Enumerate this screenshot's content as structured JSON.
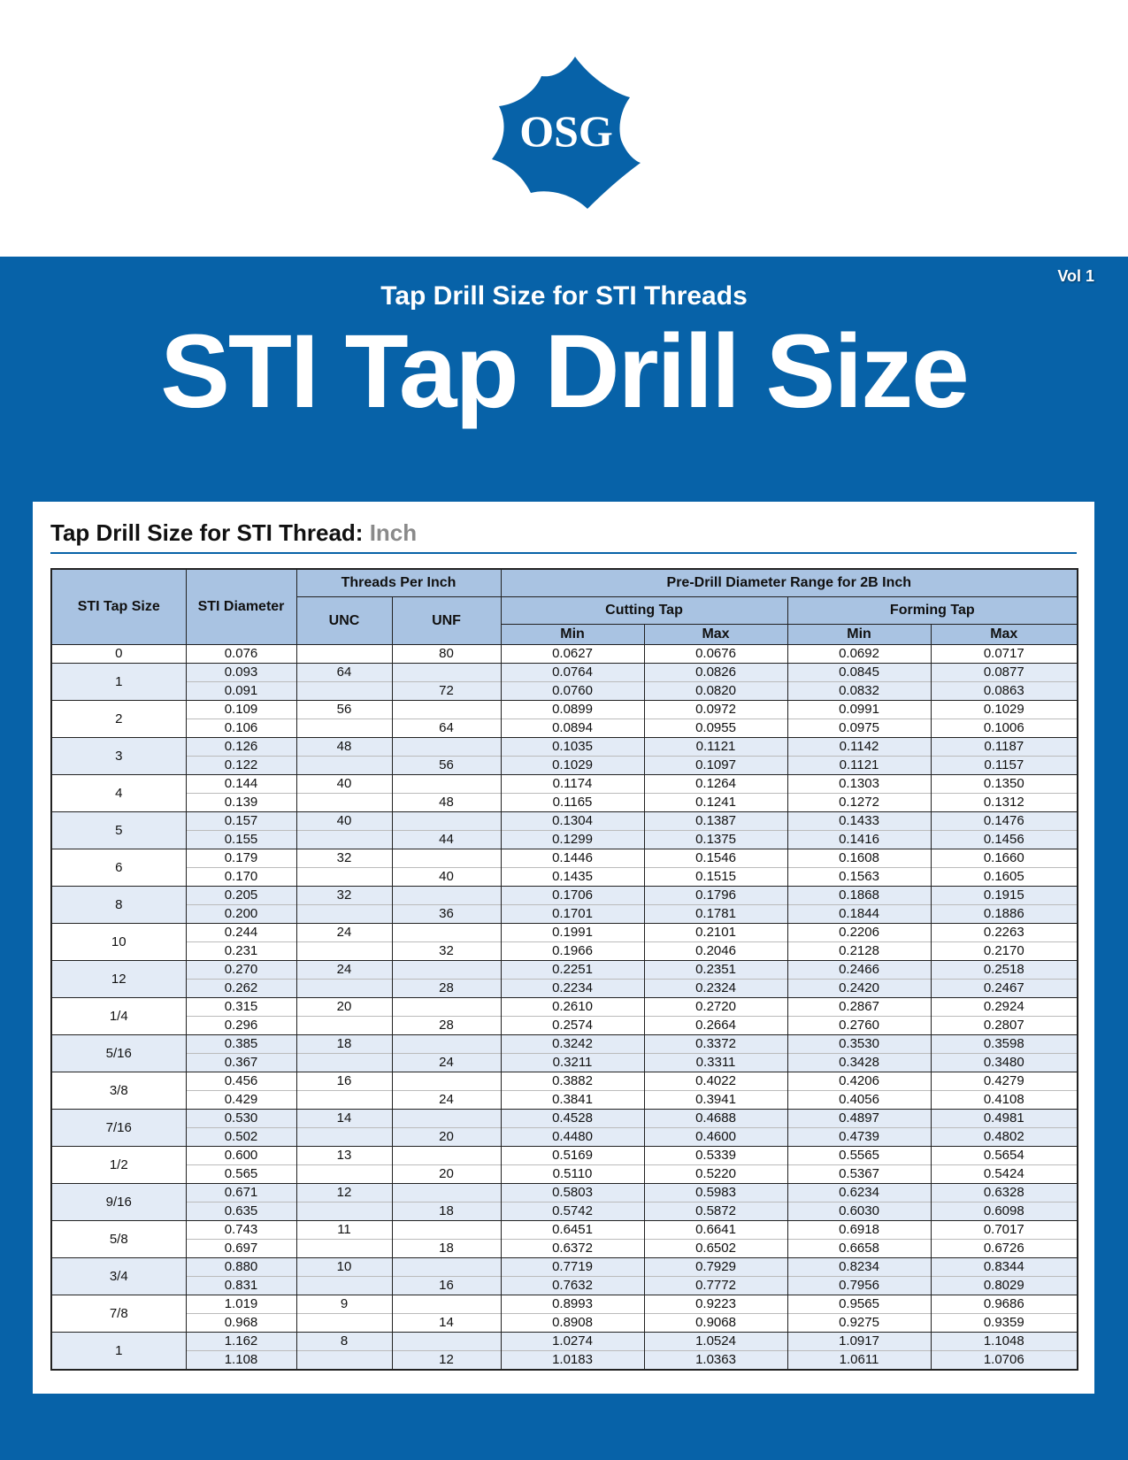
{
  "logo": {
    "text": "OSG",
    "color": "#0762a8"
  },
  "banner": {
    "volume": "Vol 1",
    "subtitle": "Tap Drill Size for STI Threads",
    "title": "STI Tap Drill Size",
    "color": "#0762a8"
  },
  "section": {
    "title": "Tap Drill Size for STI Thread:",
    "unit": "Inch"
  },
  "table": {
    "headers": {
      "tap_size": "STI Tap Size",
      "diameter": "STI Diameter",
      "tpi": "Threads Per Inch",
      "unc": "UNC",
      "unf": "UNF",
      "predrill": "Pre-Drill Diameter Range for 2B Inch",
      "cutting": "Cutting Tap",
      "forming": "Forming Tap",
      "min": "Min",
      "max": "Max"
    },
    "groups": [
      {
        "size": "0",
        "rows": [
          {
            "dia": "0.076",
            "unc": "",
            "unf": "80",
            "cmin": "0.0627",
            "cmax": "0.0676",
            "fmin": "0.0692",
            "fmax": "0.0717"
          }
        ]
      },
      {
        "size": "1",
        "rows": [
          {
            "dia": "0.093",
            "unc": "64",
            "unf": "",
            "cmin": "0.0764",
            "cmax": "0.0826",
            "fmin": "0.0845",
            "fmax": "0.0877"
          },
          {
            "dia": "0.091",
            "unc": "",
            "unf": "72",
            "cmin": "0.0760",
            "cmax": "0.0820",
            "fmin": "0.0832",
            "fmax": "0.0863"
          }
        ]
      },
      {
        "size": "2",
        "rows": [
          {
            "dia": "0.109",
            "unc": "56",
            "unf": "",
            "cmin": "0.0899",
            "cmax": "0.0972",
            "fmin": "0.0991",
            "fmax": "0.1029"
          },
          {
            "dia": "0.106",
            "unc": "",
            "unf": "64",
            "cmin": "0.0894",
            "cmax": "0.0955",
            "fmin": "0.0975",
            "fmax": "0.1006"
          }
        ]
      },
      {
        "size": "3",
        "rows": [
          {
            "dia": "0.126",
            "unc": "48",
            "unf": "",
            "cmin": "0.1035",
            "cmax": "0.1121",
            "fmin": "0.1142",
            "fmax": "0.1187"
          },
          {
            "dia": "0.122",
            "unc": "",
            "unf": "56",
            "cmin": "0.1029",
            "cmax": "0.1097",
            "fmin": "0.1121",
            "fmax": "0.1157"
          }
        ]
      },
      {
        "size": "4",
        "rows": [
          {
            "dia": "0.144",
            "unc": "40",
            "unf": "",
            "cmin": "0.1174",
            "cmax": "0.1264",
            "fmin": "0.1303",
            "fmax": "0.1350"
          },
          {
            "dia": "0.139",
            "unc": "",
            "unf": "48",
            "cmin": "0.1165",
            "cmax": "0.1241",
            "fmin": "0.1272",
            "fmax": "0.1312"
          }
        ]
      },
      {
        "size": "5",
        "rows": [
          {
            "dia": "0.157",
            "unc": "40",
            "unf": "",
            "cmin": "0.1304",
            "cmax": "0.1387",
            "fmin": "0.1433",
            "fmax": "0.1476"
          },
          {
            "dia": "0.155",
            "unc": "",
            "unf": "44",
            "cmin": "0.1299",
            "cmax": "0.1375",
            "fmin": "0.1416",
            "fmax": "0.1456"
          }
        ]
      },
      {
        "size": "6",
        "rows": [
          {
            "dia": "0.179",
            "unc": "32",
            "unf": "",
            "cmin": "0.1446",
            "cmax": "0.1546",
            "fmin": "0.1608",
            "fmax": "0.1660"
          },
          {
            "dia": "0.170",
            "unc": "",
            "unf": "40",
            "cmin": "0.1435",
            "cmax": "0.1515",
            "fmin": "0.1563",
            "fmax": "0.1605"
          }
        ]
      },
      {
        "size": "8",
        "rows": [
          {
            "dia": "0.205",
            "unc": "32",
            "unf": "",
            "cmin": "0.1706",
            "cmax": "0.1796",
            "fmin": "0.1868",
            "fmax": "0.1915"
          },
          {
            "dia": "0.200",
            "unc": "",
            "unf": "36",
            "cmin": "0.1701",
            "cmax": "0.1781",
            "fmin": "0.1844",
            "fmax": "0.1886"
          }
        ]
      },
      {
        "size": "10",
        "rows": [
          {
            "dia": "0.244",
            "unc": "24",
            "unf": "",
            "cmin": "0.1991",
            "cmax": "0.2101",
            "fmin": "0.2206",
            "fmax": "0.2263"
          },
          {
            "dia": "0.231",
            "unc": "",
            "unf": "32",
            "cmin": "0.1966",
            "cmax": "0.2046",
            "fmin": "0.2128",
            "fmax": "0.2170"
          }
        ]
      },
      {
        "size": "12",
        "rows": [
          {
            "dia": "0.270",
            "unc": "24",
            "unf": "",
            "cmin": "0.2251",
            "cmax": "0.2351",
            "fmin": "0.2466",
            "fmax": "0.2518"
          },
          {
            "dia": "0.262",
            "unc": "",
            "unf": "28",
            "cmin": "0.2234",
            "cmax": "0.2324",
            "fmin": "0.2420",
            "fmax": "0.2467"
          }
        ]
      },
      {
        "size": "1/4",
        "rows": [
          {
            "dia": "0.315",
            "unc": "20",
            "unf": "",
            "cmin": "0.2610",
            "cmax": "0.2720",
            "fmin": "0.2867",
            "fmax": "0.2924"
          },
          {
            "dia": "0.296",
            "unc": "",
            "unf": "28",
            "cmin": "0.2574",
            "cmax": "0.2664",
            "fmin": "0.2760",
            "fmax": "0.2807"
          }
        ]
      },
      {
        "size": "5/16",
        "rows": [
          {
            "dia": "0.385",
            "unc": "18",
            "unf": "",
            "cmin": "0.3242",
            "cmax": "0.3372",
            "fmin": "0.3530",
            "fmax": "0.3598"
          },
          {
            "dia": "0.367",
            "unc": "",
            "unf": "24",
            "cmin": "0.3211",
            "cmax": "0.3311",
            "fmin": "0.3428",
            "fmax": "0.3480"
          }
        ]
      },
      {
        "size": "3/8",
        "rows": [
          {
            "dia": "0.456",
            "unc": "16",
            "unf": "",
            "cmin": "0.3882",
            "cmax": "0.4022",
            "fmin": "0.4206",
            "fmax": "0.4279"
          },
          {
            "dia": "0.429",
            "unc": "",
            "unf": "24",
            "cmin": "0.3841",
            "cmax": "0.3941",
            "fmin": "0.4056",
            "fmax": "0.4108"
          }
        ]
      },
      {
        "size": "7/16",
        "rows": [
          {
            "dia": "0.530",
            "unc": "14",
            "unf": "",
            "cmin": "0.4528",
            "cmax": "0.4688",
            "fmin": "0.4897",
            "fmax": "0.4981"
          },
          {
            "dia": "0.502",
            "unc": "",
            "unf": "20",
            "cmin": "0.4480",
            "cmax": "0.4600",
            "fmin": "0.4739",
            "fmax": "0.4802"
          }
        ]
      },
      {
        "size": "1/2",
        "rows": [
          {
            "dia": "0.600",
            "unc": "13",
            "unf": "",
            "cmin": "0.5169",
            "cmax": "0.5339",
            "fmin": "0.5565",
            "fmax": "0.5654"
          },
          {
            "dia": "0.565",
            "unc": "",
            "unf": "20",
            "cmin": "0.5110",
            "cmax": "0.5220",
            "fmin": "0.5367",
            "fmax": "0.5424"
          }
        ]
      },
      {
        "size": "9/16",
        "rows": [
          {
            "dia": "0.671",
            "unc": "12",
            "unf": "",
            "cmin": "0.5803",
            "cmax": "0.5983",
            "fmin": "0.6234",
            "fmax": "0.6328"
          },
          {
            "dia": "0.635",
            "unc": "",
            "unf": "18",
            "cmin": "0.5742",
            "cmax": "0.5872",
            "fmin": "0.6030",
            "fmax": "0.6098"
          }
        ]
      },
      {
        "size": "5/8",
        "rows": [
          {
            "dia": "0.743",
            "unc": "11",
            "unf": "",
            "cmin": "0.6451",
            "cmax": "0.6641",
            "fmin": "0.6918",
            "fmax": "0.7017"
          },
          {
            "dia": "0.697",
            "unc": "",
            "unf": "18",
            "cmin": "0.6372",
            "cmax": "0.6502",
            "fmin": "0.6658",
            "fmax": "0.6726"
          }
        ]
      },
      {
        "size": "3/4",
        "rows": [
          {
            "dia": "0.880",
            "unc": "10",
            "unf": "",
            "cmin": "0.7719",
            "cmax": "0.7929",
            "fmin": "0.8234",
            "fmax": "0.8344"
          },
          {
            "dia": "0.831",
            "unc": "",
            "unf": "16",
            "cmin": "0.7632",
            "cmax": "0.7772",
            "fmin": "0.7956",
            "fmax": "0.8029"
          }
        ]
      },
      {
        "size": "7/8",
        "rows": [
          {
            "dia": "1.019",
            "unc": "9",
            "unf": "",
            "cmin": "0.8993",
            "cmax": "0.9223",
            "fmin": "0.9565",
            "fmax": "0.9686"
          },
          {
            "dia": "0.968",
            "unc": "",
            "unf": "14",
            "cmin": "0.8908",
            "cmax": "0.9068",
            "fmin": "0.9275",
            "fmax": "0.9359"
          }
        ]
      },
      {
        "size": "1",
        "rows": [
          {
            "dia": "1.162",
            "unc": "8",
            "unf": "",
            "cmin": "1.0274",
            "cmax": "1.0524",
            "fmin": "1.0917",
            "fmax": "1.1048"
          },
          {
            "dia": "1.108",
            "unc": "",
            "unf": "12",
            "cmin": "1.0183",
            "cmax": "1.0363",
            "fmin": "1.0611",
            "fmax": "1.0706"
          }
        ]
      }
    ]
  }
}
